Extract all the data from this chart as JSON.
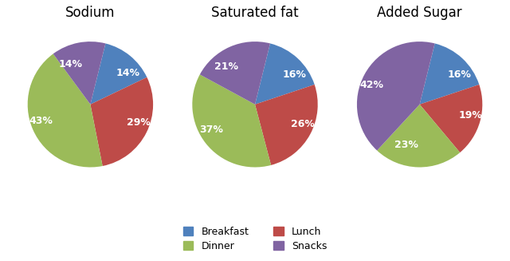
{
  "charts": [
    {
      "title": "Sodium",
      "values": [
        14,
        29,
        43,
        14
      ],
      "labels": [
        "14%",
        "29%",
        "43%",
        "14%"
      ],
      "startangle": 76
    },
    {
      "title": "Saturated fat",
      "values": [
        16,
        26,
        37,
        21
      ],
      "labels": [
        "16%",
        "26%",
        "37%",
        "21%"
      ],
      "startangle": 76
    },
    {
      "title": "Added Sugar",
      "values": [
        16,
        19,
        23,
        42
      ],
      "labels": [
        "16%",
        "19%",
        "23%",
        "42%"
      ],
      "startangle": 76
    }
  ],
  "colors": [
    "#4F81BD",
    "#BE4B48",
    "#9BBB59",
    "#8064A2"
  ],
  "legend_labels": [
    "Breakfast",
    "Lunch",
    "Dinner",
    "Snacks"
  ],
  "text_color": "#FFFFFF",
  "title_fontsize": 12,
  "label_fontsize": 9,
  "legend_fontsize": 9
}
